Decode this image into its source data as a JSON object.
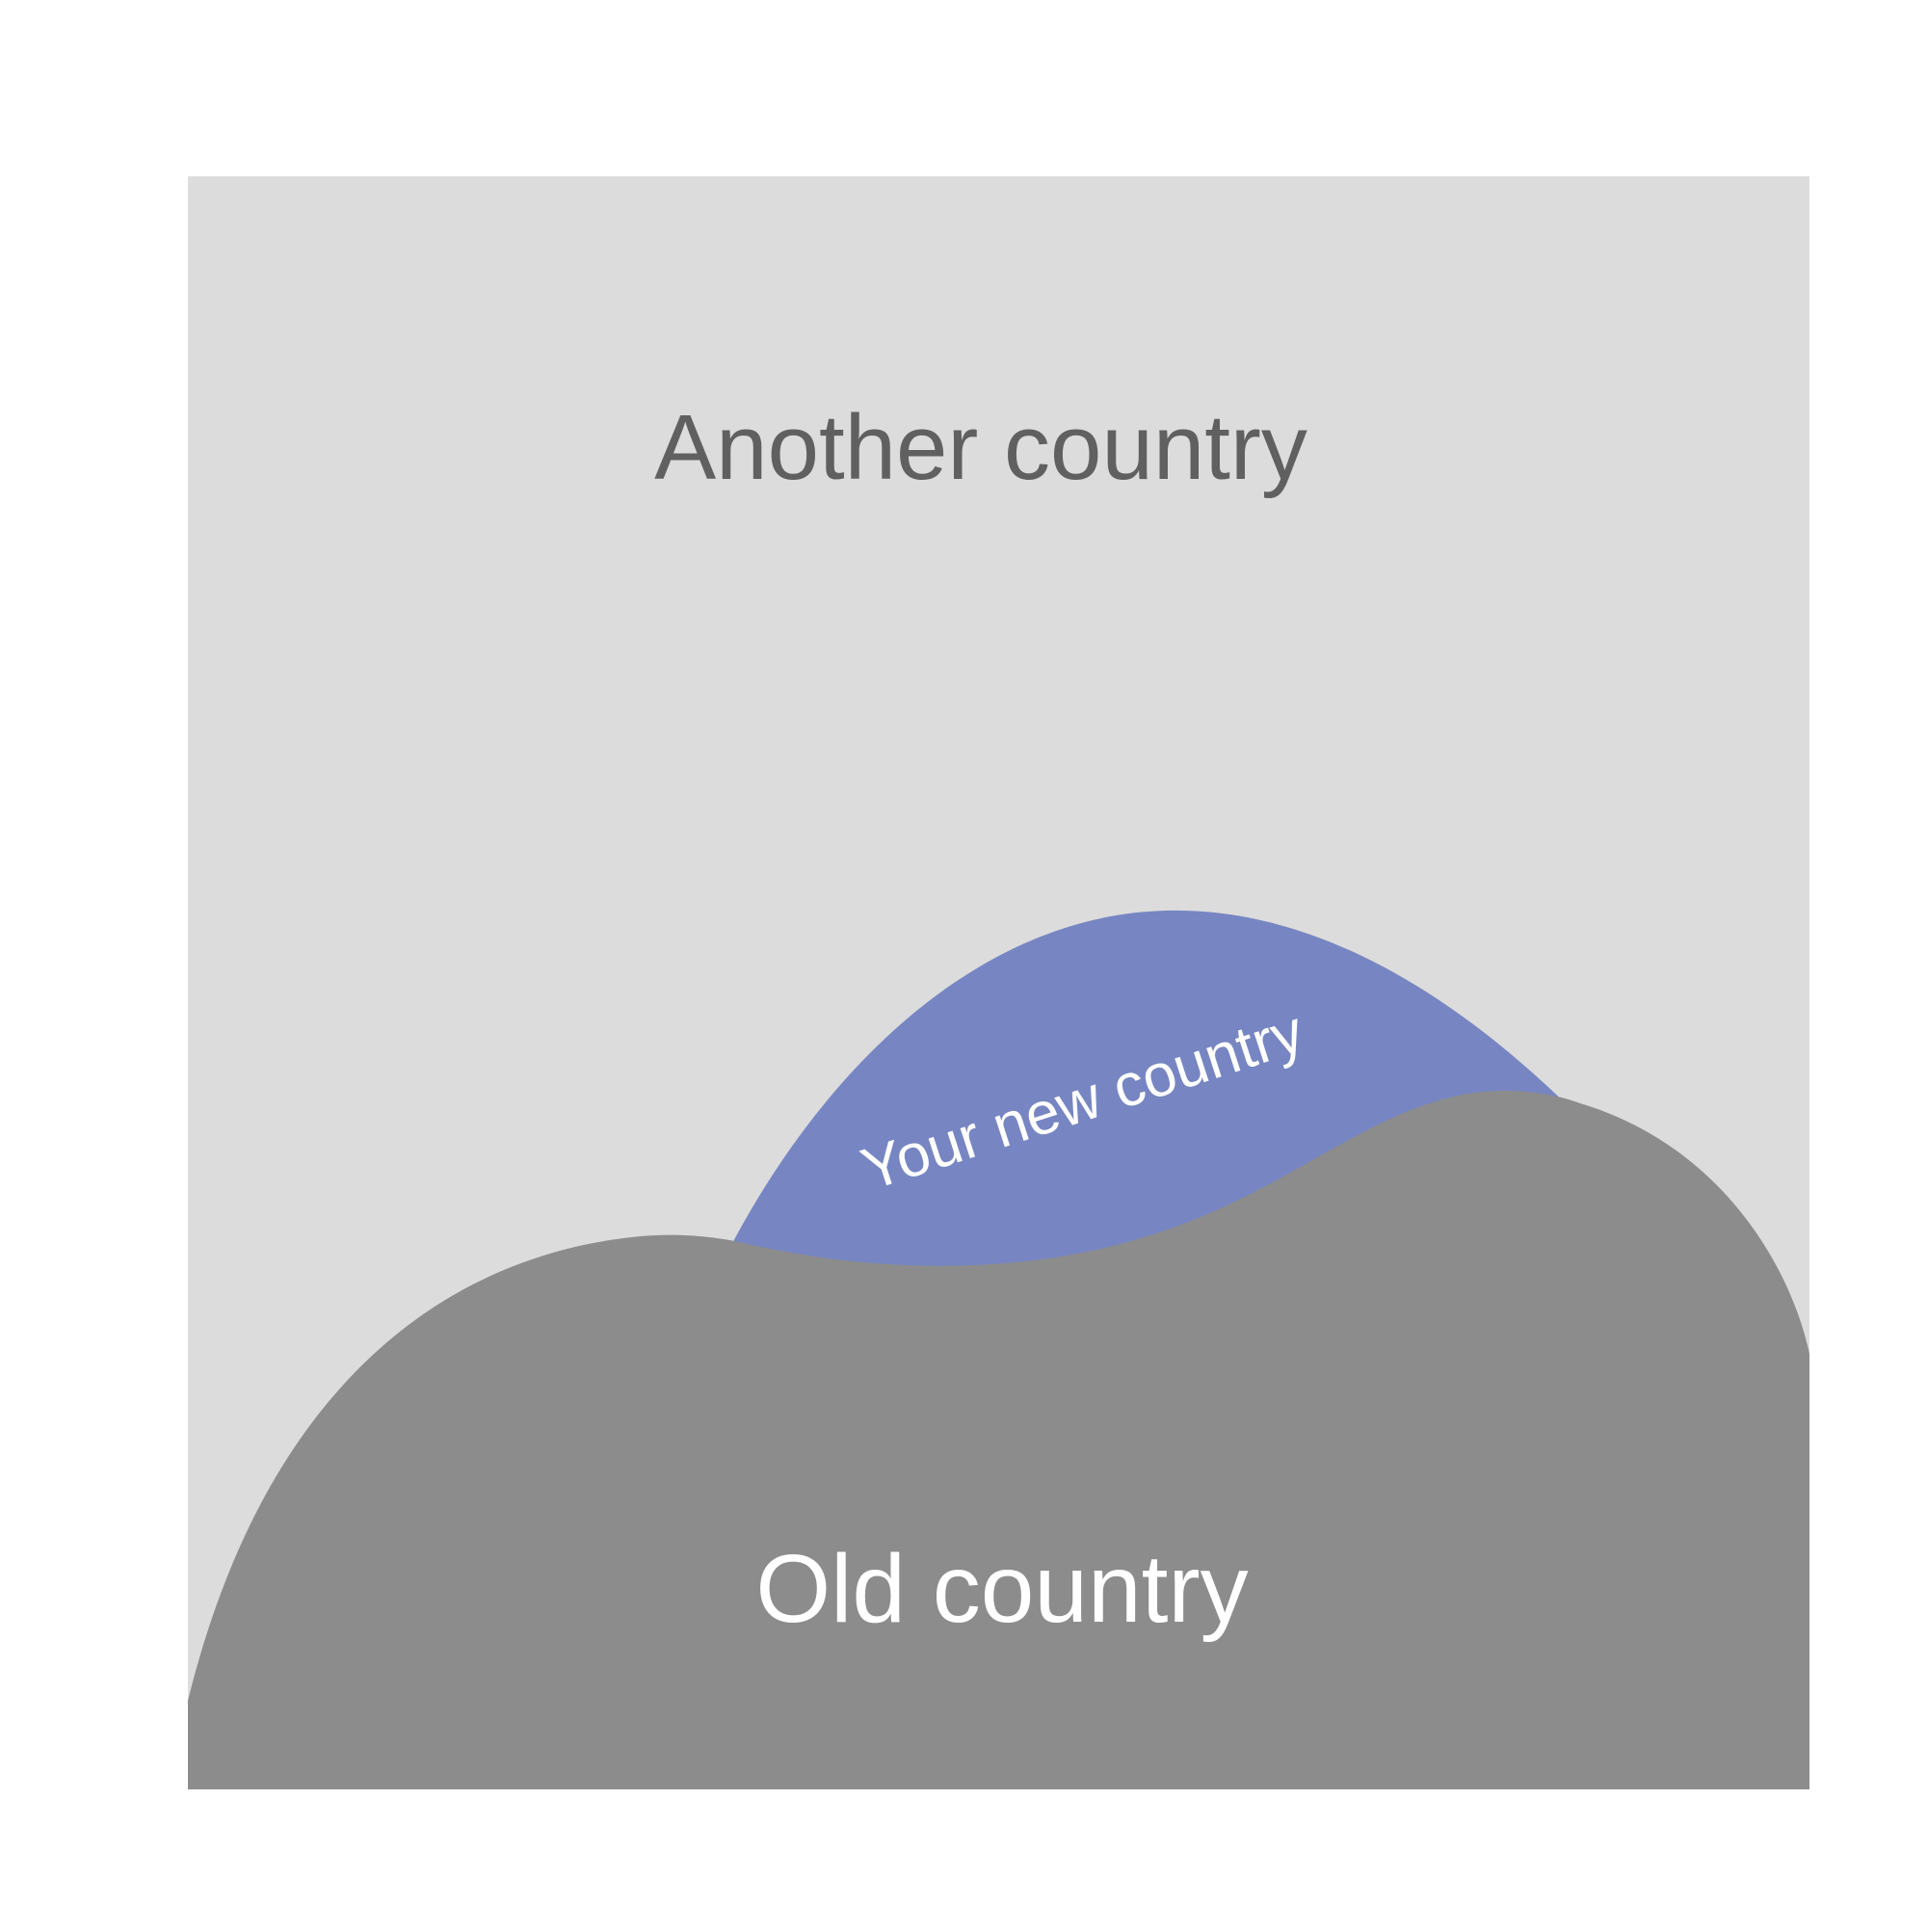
{
  "regions": {
    "another_country": {
      "label": "Another country",
      "color": "#dcdcdc",
      "label_color": "#606060"
    },
    "new_country": {
      "label": "Your new country",
      "color": "#7786c2",
      "label_color": "#ffffff"
    },
    "old_country": {
      "label": "Old country",
      "color": "#8c8c8c",
      "label_color": "#ffffff"
    }
  }
}
